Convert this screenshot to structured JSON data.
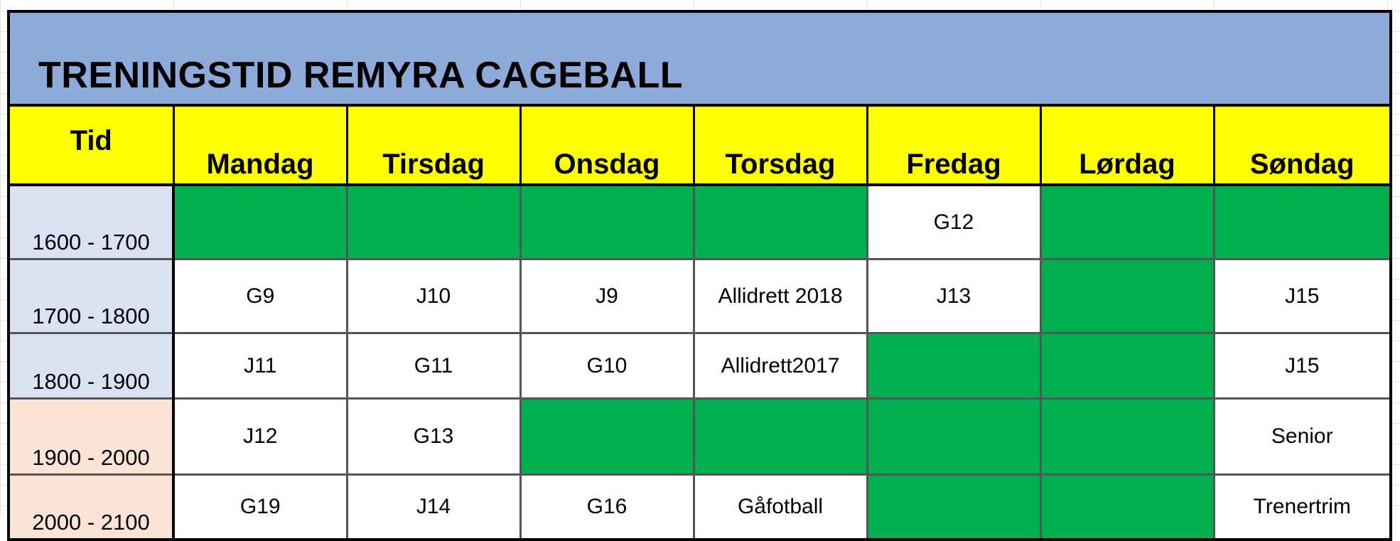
{
  "title": "TRENINGSTID REMYRA CAGEBALL",
  "headers": [
    "Tid",
    "Mandag",
    "Tirsdag",
    "Onsdag",
    "Torsdag",
    "Fredag",
    "Lørdag",
    "Søndag"
  ],
  "colors": {
    "title_bg": "#8eaadb",
    "header_bg": "#ffff00",
    "free_slot": "#00b050",
    "time_early_bg": "#d9e1f2",
    "time_late_bg": "#fbe4d6"
  },
  "rows": [
    {
      "time": "1600 - 1700",
      "cells": [
        "",
        "",
        "",
        "",
        "G12",
        "",
        ""
      ]
    },
    {
      "time": "1700 - 1800",
      "cells": [
        "G9",
        "J10",
        "J9",
        "Allidrett 2018",
        "J13",
        "",
        "J15"
      ]
    },
    {
      "time": "1800 - 1900",
      "cells": [
        "J11",
        "G11",
        "G10",
        "Allidrett2017",
        "",
        "",
        "J15"
      ]
    },
    {
      "time": "1900 - 2000",
      "cells": [
        "J12",
        "G13",
        "",
        "",
        "",
        "",
        "Senior"
      ]
    },
    {
      "time": "2000 - 2100",
      "cells": [
        "G19",
        "J14",
        "G16",
        "Gåfotball",
        "",
        "",
        "Trenertrim"
      ]
    }
  ]
}
